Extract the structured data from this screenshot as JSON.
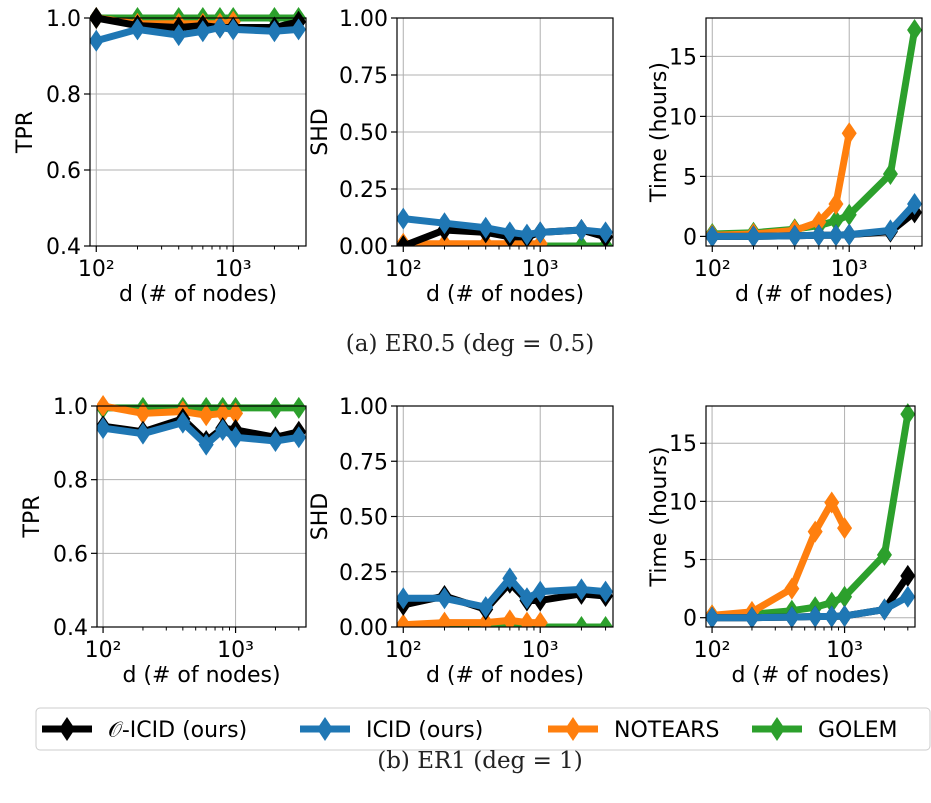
{
  "colors": {
    "o_icid": "#000000",
    "icid": "#1f77b4",
    "notears": "#ff7f0e",
    "golem": "#2ca02c",
    "grid": "#b0b0b0"
  },
  "captions": {
    "a": "(a) ER0.5 (deg = 0.5)",
    "b": "(b) ER1 (deg = 1)"
  },
  "legend": {
    "items": [
      {
        "label": "𝒪-ICID (ours)",
        "color_key": "o_icid"
      },
      {
        "label": "ICID (ours)",
        "color_key": "icid"
      },
      {
        "label": "NOTEARS",
        "color_key": "notears"
      },
      {
        "label": "GOLEM",
        "color_key": "golem"
      }
    ]
  },
  "chart_data": [
    {
      "id": "er05-tpr",
      "type": "line",
      "xscale": "log",
      "xlabel": "d (# of nodes)",
      "ylabel": "TPR",
      "ylim": [
        0.4,
        1.0
      ],
      "yticks": [
        "0.4",
        "0.6",
        "0.8",
        "1.0"
      ],
      "xticks": [
        "10²",
        "10³"
      ],
      "series": [
        {
          "name": "𝒪-ICID (ours)",
          "x": [
            100,
            200,
            400,
            600,
            800,
            1000,
            2000,
            3000
          ],
          "values": [
            1.0,
            0.98,
            0.975,
            0.98,
            0.975,
            0.975,
            0.975,
            0.99
          ]
        },
        {
          "name": "ICID (ours)",
          "x": [
            100,
            200,
            400,
            600,
            800,
            1000,
            2000,
            3000
          ],
          "values": [
            0.94,
            0.97,
            0.955,
            0.965,
            0.975,
            0.97,
            0.965,
            0.97
          ]
        },
        {
          "name": "NOTEARS",
          "x": [
            100,
            200,
            400,
            600,
            800,
            1000
          ],
          "values": [
            1.0,
            0.985,
            0.985,
            0.985,
            0.985,
            0.99
          ]
        },
        {
          "name": "GOLEM",
          "x": [
            100,
            200,
            400,
            600,
            800,
            1000,
            2000,
            3000
          ],
          "values": [
            1.0,
            1.0,
            1.0,
            1.0,
            1.0,
            1.0,
            1.0,
            1.0
          ]
        }
      ]
    },
    {
      "id": "er05-shd",
      "type": "line",
      "xscale": "log",
      "xlabel": "d (# of nodes)",
      "ylabel": "SHD",
      "ylim": [
        0.0,
        1.0
      ],
      "yticks": [
        "0.00",
        "0.25",
        "0.50",
        "0.75",
        "1.00"
      ],
      "xticks": [
        "10²",
        "10³"
      ],
      "series": [
        {
          "name": "𝒪-ICID (ours)",
          "x": [
            100,
            200,
            400,
            600,
            800,
            1000,
            2000,
            3000
          ],
          "values": [
            0.0,
            0.07,
            0.06,
            0.04,
            0.04,
            0.06,
            0.07,
            0.04
          ]
        },
        {
          "name": "ICID (ours)",
          "x": [
            100,
            200,
            400,
            600,
            800,
            1000,
            2000,
            3000
          ],
          "values": [
            0.12,
            0.1,
            0.08,
            0.06,
            0.05,
            0.06,
            0.07,
            0.06
          ]
        },
        {
          "name": "NOTEARS",
          "x": [
            100,
            200,
            400,
            600,
            800,
            1000
          ],
          "values": [
            0.01,
            0.01,
            0.01,
            0.01,
            0.01,
            0.01
          ]
        },
        {
          "name": "GOLEM",
          "x": [
            100,
            200,
            400,
            600,
            800,
            1000,
            2000,
            3000
          ],
          "values": [
            0.0,
            0.0,
            0.0,
            0.0,
            0.0,
            0.0,
            0.0,
            0.0
          ]
        }
      ]
    },
    {
      "id": "er05-time",
      "type": "line",
      "xscale": "log",
      "xlabel": "d (# of nodes)",
      "ylabel": "Time (hours)",
      "ylim": [
        -0.8,
        18.2
      ],
      "yticks": [
        "0",
        "5",
        "10",
        "15"
      ],
      "xticks": [
        "10²",
        "10³"
      ],
      "series": [
        {
          "name": "𝒪-ICID (ours)",
          "x": [
            100,
            200,
            400,
            600,
            800,
            1000,
            2000,
            3000
          ],
          "values": [
            0.0,
            0.0,
            0.05,
            0.1,
            0.1,
            0.15,
            0.4,
            2.0
          ]
        },
        {
          "name": "ICID (ours)",
          "x": [
            100,
            200,
            400,
            600,
            800,
            1000,
            2000,
            3000
          ],
          "values": [
            0.0,
            0.0,
            0.05,
            0.1,
            0.1,
            0.15,
            0.5,
            2.7
          ]
        },
        {
          "name": "NOTEARS",
          "x": [
            100,
            200,
            400,
            600,
            800,
            1000
          ],
          "values": [
            0.1,
            0.2,
            0.5,
            1.2,
            2.7,
            8.6
          ]
        },
        {
          "name": "GOLEM",
          "x": [
            100,
            200,
            400,
            600,
            800,
            1000,
            2000,
            3000
          ],
          "values": [
            0.2,
            0.3,
            0.6,
            0.9,
            1.3,
            1.8,
            5.2,
            17.2
          ]
        }
      ]
    },
    {
      "id": "er1-tpr",
      "type": "line",
      "xscale": "log",
      "xlabel": "d (# of nodes)",
      "ylabel": "TPR",
      "ylim": [
        0.4,
        1.0
      ],
      "yticks": [
        "0.4",
        "0.6",
        "0.8",
        "1.0"
      ],
      "xticks": [
        "10²",
        "10³"
      ],
      "series": [
        {
          "name": "𝒪-ICID (ours)",
          "x": [
            100,
            200,
            400,
            600,
            800,
            1000,
            2000,
            3000
          ],
          "values": [
            0.945,
            0.93,
            0.965,
            0.905,
            0.94,
            0.935,
            0.915,
            0.93
          ]
        },
        {
          "name": "ICID (ours)",
          "x": [
            100,
            200,
            400,
            600,
            800,
            1000,
            2000,
            3000
          ],
          "values": [
            0.94,
            0.925,
            0.955,
            0.895,
            0.935,
            0.915,
            0.905,
            0.915
          ]
        },
        {
          "name": "NOTEARS",
          "x": [
            100,
            200,
            400,
            600,
            800,
            1000
          ],
          "values": [
            1.0,
            0.98,
            0.985,
            0.975,
            0.98,
            0.98
          ]
        },
        {
          "name": "GOLEM",
          "x": [
            100,
            200,
            400,
            600,
            800,
            1000,
            2000,
            3000
          ],
          "values": [
            0.995,
            0.995,
            0.995,
            0.995,
            0.995,
            0.995,
            0.995,
            0.995
          ]
        }
      ]
    },
    {
      "id": "er1-shd",
      "type": "line",
      "xscale": "log",
      "xlabel": "d (# of nodes)",
      "ylabel": "SHD",
      "ylim": [
        0.0,
        1.0
      ],
      "yticks": [
        "0.00",
        "0.25",
        "0.50",
        "0.75",
        "1.00"
      ],
      "xticks": [
        "10²",
        "10³"
      ],
      "series": [
        {
          "name": "𝒪-ICID (ours)",
          "x": [
            100,
            200,
            400,
            600,
            800,
            1000,
            2000,
            3000
          ],
          "values": [
            0.1,
            0.14,
            0.08,
            0.2,
            0.12,
            0.12,
            0.15,
            0.14
          ]
        },
        {
          "name": "ICID (ours)",
          "x": [
            100,
            200,
            400,
            600,
            800,
            1000,
            2000,
            3000
          ],
          "values": [
            0.13,
            0.13,
            0.09,
            0.22,
            0.13,
            0.16,
            0.17,
            0.16
          ]
        },
        {
          "name": "NOTEARS",
          "x": [
            100,
            200,
            400,
            600,
            800,
            1000
          ],
          "values": [
            0.01,
            0.02,
            0.02,
            0.03,
            0.02,
            0.02
          ]
        },
        {
          "name": "GOLEM",
          "x": [
            100,
            200,
            400,
            600,
            800,
            1000,
            2000,
            3000
          ],
          "values": [
            0.0,
            0.0,
            0.0,
            0.0,
            0.0,
            0.0,
            0.0,
            0.0
          ]
        }
      ]
    },
    {
      "id": "er1-time",
      "type": "line",
      "xscale": "log",
      "xlabel": "d (# of nodes)",
      "ylabel": "Time (hours)",
      "ylim": [
        -0.8,
        18.2
      ],
      "yticks": [
        "0",
        "5",
        "10",
        "15"
      ],
      "xticks": [
        "10²",
        "10³"
      ],
      "series": [
        {
          "name": "𝒪-ICID (ours)",
          "x": [
            100,
            200,
            400,
            600,
            800,
            1000,
            2000,
            3000
          ],
          "values": [
            0.0,
            0.0,
            0.05,
            0.1,
            0.1,
            0.15,
            0.7,
            3.6
          ]
        },
        {
          "name": "ICID (ours)",
          "x": [
            100,
            200,
            400,
            600,
            800,
            1000,
            2000,
            3000
          ],
          "values": [
            0.0,
            0.0,
            0.05,
            0.1,
            0.1,
            0.15,
            0.7,
            1.8
          ]
        },
        {
          "name": "NOTEARS",
          "x": [
            100,
            200,
            400,
            600,
            800,
            1000
          ],
          "values": [
            0.2,
            0.5,
            2.5,
            7.4,
            9.9,
            7.7
          ]
        },
        {
          "name": "GOLEM",
          "x": [
            100,
            200,
            400,
            600,
            800,
            1000,
            2000,
            3000
          ],
          "values": [
            0.2,
            0.3,
            0.6,
            0.9,
            1.3,
            1.8,
            5.4,
            17.5
          ]
        }
      ]
    }
  ]
}
